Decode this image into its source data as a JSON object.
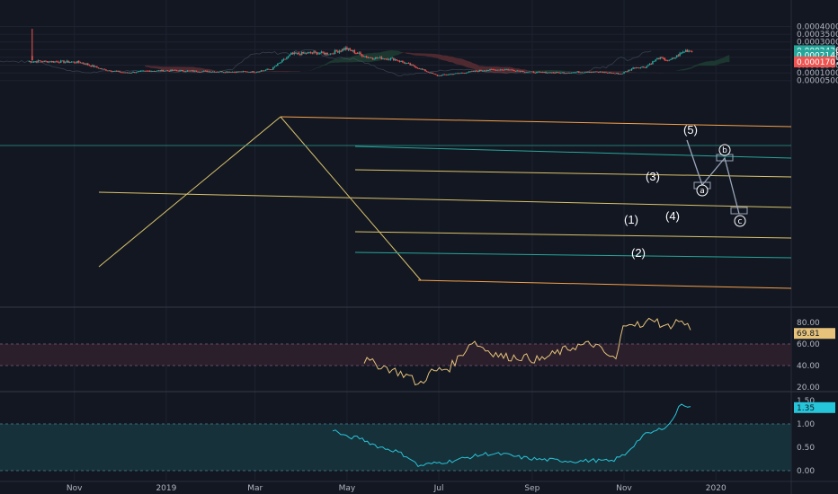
{
  "chart_data": [
    {
      "type": "candlestick",
      "panel": "price",
      "y_ticks": [
        "0.0004000",
        "0.0003500",
        "0.0003000",
        "0.0002500",
        "0.0002000",
        "0.0001500",
        "0.0001000",
        "0.0000500"
      ],
      "ylim": [
        3e-05,
        0.00042
      ],
      "x_ticks": [
        "Nov",
        "2019",
        "Mar",
        "May",
        "Jul",
        "Sep",
        "Nov",
        "2020"
      ],
      "price_labels": [
        {
          "label": "0.0002436",
          "value": 0.0002436,
          "color": "#26a69a",
          "text_color": "#ffffff"
        },
        {
          "label": "0.0002148",
          "value": 0.0002148,
          "color": "#26a69a",
          "text_color": "#ffffff"
        },
        {
          "label": "0.0001707",
          "value": 0.0001707,
          "color": "#ef5350",
          "text_color": "#ffffff"
        }
      ],
      "wave_labels": [
        "(1)",
        "(2)",
        "(3)",
        "(4)",
        "(5)"
      ],
      "correction_labels": [
        "a",
        "b",
        "c"
      ],
      "series_anchors": {
        "close_approx": [
          [
            "2018-10-01",
            0.000175
          ],
          [
            "2018-10-20",
            0.000173
          ],
          [
            "2018-11-05",
            0.000168
          ],
          [
            "2018-11-20",
            0.000122
          ],
          [
            "2018-12-05",
            0.0001
          ],
          [
            "2018-12-20",
            0.000112
          ],
          [
            "2019-01-05",
            0.000115
          ],
          [
            "2019-01-25",
            0.00011
          ],
          [
            "2019-02-15",
            0.000106
          ],
          [
            "2019-03-01",
            0.000107
          ],
          [
            "2019-03-12",
            0.000125
          ],
          [
            "2019-03-25",
            0.00022
          ],
          [
            "2019-04-08",
            0.00023
          ],
          [
            "2019-04-20",
            0.000225
          ],
          [
            "2019-04-30",
            0.000258
          ],
          [
            "2019-05-15",
            0.0002
          ],
          [
            "2019-06-01",
            0.00019
          ],
          [
            "2019-06-15",
            0.00014
          ],
          [
            "2019-06-30",
            8.2e-05
          ],
          [
            "2019-07-15",
            9.8e-05
          ],
          [
            "2019-08-01",
            0.000118
          ],
          [
            "2019-08-15",
            0.000122
          ],
          [
            "2019-09-01",
            0.000104
          ],
          [
            "2019-09-20",
            0.0001
          ],
          [
            "2019-10-10",
            0.000108
          ],
          [
            "2019-10-30",
            9.4e-05
          ],
          [
            "2019-11-08",
            0.000135
          ],
          [
            "2019-11-15",
            0.000138
          ],
          [
            "2019-11-24",
            0.000196
          ],
          [
            "2019-12-01",
            0.000178
          ],
          [
            "2019-12-12",
            0.000245
          ],
          [
            "2019-12-16",
            0.000243
          ]
        ]
      }
    },
    {
      "type": "line",
      "panel": "rsi",
      "y_ticks": [
        "80.00",
        "60.00",
        "40.00",
        "20.00"
      ],
      "band": [
        40,
        60
      ],
      "current_value_label": "69.81",
      "current_value": 69.81,
      "color": "#e6c27a"
    },
    {
      "type": "line",
      "panel": "indicator",
      "y_ticks": [
        "1.50",
        "1.00",
        "0.50",
        "0.00"
      ],
      "band": [
        0,
        1
      ],
      "current_value_label": "1.35",
      "current_value": 1.35,
      "color": "#26c6da"
    }
  ],
  "colors": {
    "background": "#131722",
    "up": "#26a69a",
    "down": "#ef5350",
    "channel": "#f5a04a",
    "fib_yellow": "#d9c36a",
    "fib_green": "#26a69a",
    "cloud_red": "#5a2d33",
    "cloud_green": "#1f3d31",
    "rsi_band": "#2a1f2b",
    "ind_band": "#17313a"
  }
}
